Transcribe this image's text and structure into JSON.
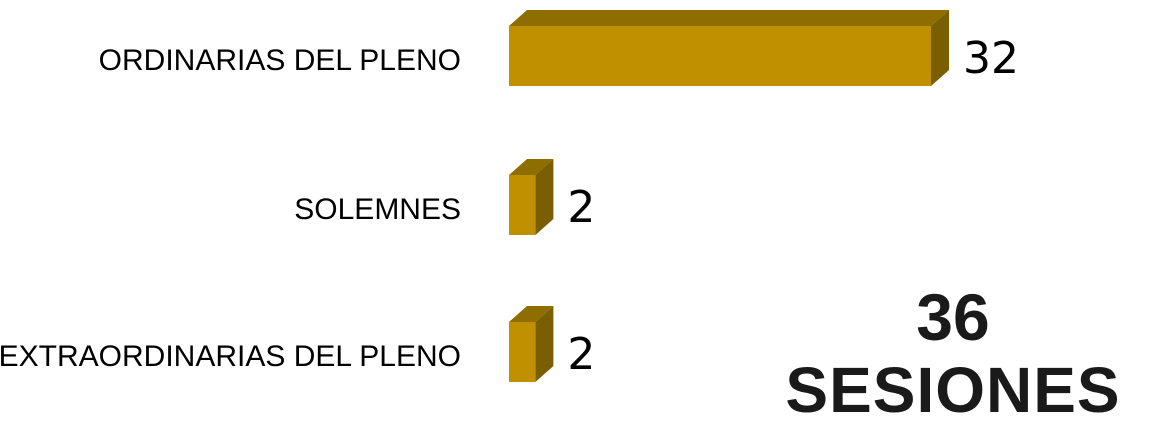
{
  "chart_data": {
    "type": "bar",
    "orientation": "horizontal",
    "categories": [
      "ORDINARIAS DEL PLENO",
      "SOLEMNES",
      "EXTRAORDINARIAS DEL PLENO"
    ],
    "values": [
      32,
      2,
      2
    ],
    "xlim": [
      0,
      32
    ],
    "grid": false,
    "legend": "none",
    "colors": {
      "front": "#C09000",
      "top": "#8F6E00",
      "side": "#7A5E00"
    }
  },
  "summary": {
    "total": "36",
    "label": "SESIONES"
  }
}
